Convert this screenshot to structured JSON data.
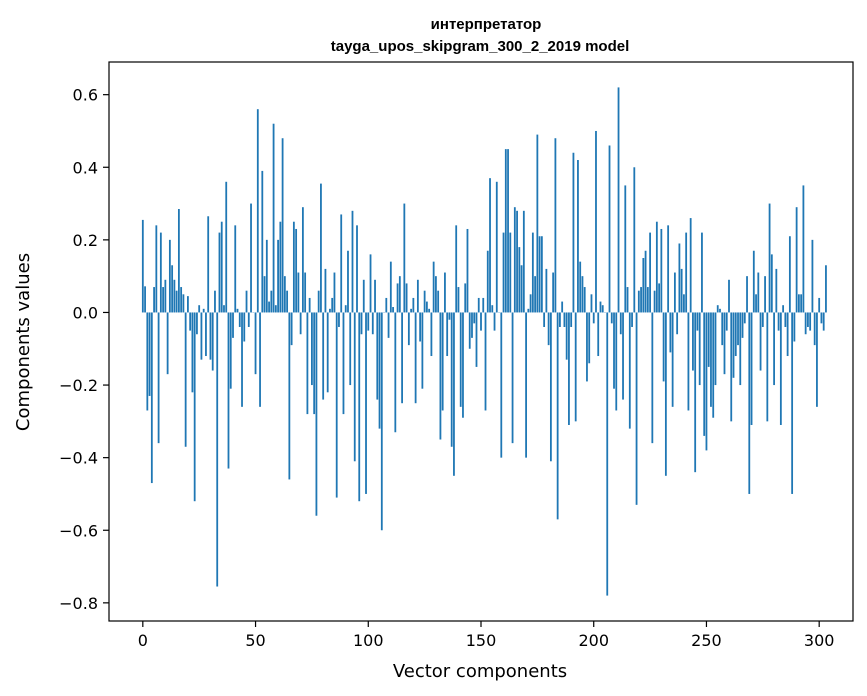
{
  "chart_data": {
    "type": "bar",
    "title_line1": "интерпретатор",
    "title_line2": "tayga_upos_skipgram_300_2_2019 model",
    "xlabel": "Vector components",
    "ylabel": "Components values",
    "xlim": [
      -15,
      315
    ],
    "ylim": [
      -0.85,
      0.69
    ],
    "xticks": [
      0,
      50,
      100,
      150,
      200,
      250,
      300
    ],
    "yticks": [
      -0.8,
      -0.6,
      -0.4,
      -0.2,
      0.0,
      0.2,
      0.4,
      0.6
    ],
    "ytick_labels": [
      "−0.8",
      "−0.6",
      "−0.4",
      "−0.2",
      "0.0",
      "0.2",
      "0.4",
      "0.6"
    ],
    "bar_color": "#1f77b4",
    "values": [
      0.255,
      0.072,
      -0.27,
      -0.23,
      -0.47,
      0.07,
      0.24,
      -0.36,
      0.22,
      0.07,
      0.09,
      -0.17,
      0.2,
      0.13,
      0.09,
      0.06,
      0.285,
      0.07,
      0.05,
      -0.37,
      0.045,
      -0.05,
      -0.22,
      -0.52,
      -0.06,
      0.02,
      -0.13,
      0.01,
      -0.12,
      0.265,
      -0.13,
      -0.16,
      0.06,
      -0.755,
      0.22,
      0.25,
      0.02,
      0.36,
      -0.43,
      -0.21,
      -0.07,
      0.24,
      0.01,
      -0.04,
      -0.26,
      -0.08,
      0.06,
      -0.04,
      0.3,
      0.0,
      -0.17,
      0.56,
      -0.26,
      0.39,
      0.1,
      0.2,
      0.03,
      0.06,
      0.52,
      0.02,
      0.2,
      0.25,
      0.48,
      0.1,
      0.06,
      -0.46,
      -0.09,
      0.25,
      0.23,
      0.11,
      -0.06,
      0.29,
      0.11,
      -0.28,
      0.04,
      -0.2,
      -0.28,
      -0.56,
      0.06,
      0.355,
      -0.24,
      0.12,
      -0.22,
      0.01,
      0.04,
      0.11,
      -0.51,
      -0.04,
      0.27,
      -0.28,
      0.02,
      0.17,
      -0.2,
      0.28,
      -0.41,
      0.24,
      -0.52,
      -0.06,
      0.09,
      -0.5,
      -0.05,
      0.16,
      -0.06,
      0.09,
      -0.24,
      -0.32,
      -0.6,
      0.0,
      0.04,
      -0.07,
      0.14,
      0.015,
      -0.33,
      0.08,
      0.1,
      -0.25,
      0.3,
      0.08,
      -0.09,
      0.01,
      0.04,
      -0.25,
      0.09,
      -0.08,
      -0.21,
      0.06,
      0.03,
      0.01,
      -0.12,
      0.14,
      0.1,
      0.06,
      -0.35,
      -0.27,
      0.11,
      -0.12,
      -0.02,
      -0.37,
      -0.45,
      0.24,
      0.07,
      -0.26,
      -0.29,
      0.08,
      0.23,
      -0.1,
      -0.07,
      -0.03,
      -0.15,
      0.04,
      -0.05,
      0.04,
      -0.27,
      0.17,
      0.37,
      0.02,
      -0.05,
      0.36,
      0.0,
      -0.4,
      0.22,
      0.45,
      0.45,
      0.22,
      -0.36,
      0.29,
      0.28,
      0.18,
      0.13,
      0.28,
      -0.4,
      0.01,
      0.05,
      0.22,
      0.1,
      0.49,
      0.21,
      0.21,
      -0.04,
      0.12,
      -0.09,
      -0.41,
      0.11,
      0.48,
      -0.57,
      -0.04,
      0.03,
      -0.04,
      -0.13,
      -0.31,
      -0.04,
      0.44,
      -0.3,
      0.42,
      0.14,
      0.1,
      0.07,
      -0.19,
      -0.14,
      0.05,
      -0.03,
      0.5,
      -0.12,
      0.03,
      0.02,
      0.0,
      -0.78,
      0.46,
      -0.03,
      -0.21,
      -0.27,
      0.62,
      -0.06,
      -0.24,
      0.35,
      0.07,
      -0.32,
      -0.04,
      0.4,
      -0.53,
      0.06,
      0.07,
      0.15,
      0.17,
      0.07,
      0.22,
      -0.36,
      0.06,
      0.25,
      0.08,
      0.23,
      -0.19,
      -0.45,
      0.24,
      -0.11,
      -0.26,
      0.11,
      -0.06,
      0.19,
      0.12,
      0.05,
      0.22,
      -0.27,
      0.26,
      -0.16,
      -0.44,
      -0.05,
      -0.2,
      0.22,
      -0.34,
      -0.38,
      -0.15,
      -0.26,
      -0.29,
      -0.2,
      0.02,
      0.01,
      -0.09,
      -0.17,
      -0.05,
      0.09,
      -0.3,
      -0.18,
      -0.12,
      -0.09,
      -0.2,
      -0.07,
      -0.03,
      0.1,
      -0.5,
      -0.31,
      0.17,
      0.05,
      0.11,
      -0.16,
      -0.04,
      0.1,
      -0.3,
      0.3,
      0.16,
      -0.2,
      0.12,
      -0.05,
      -0.31,
      0.02,
      -0.04,
      -0.12,
      0.21,
      -0.5,
      -0.08,
      0.29,
      0.05,
      0.05,
      0.35,
      -0.06,
      -0.04,
      -0.05,
      0.2,
      -0.09,
      -0.26,
      0.04,
      -0.03,
      -0.05,
      0.13
    ]
  }
}
